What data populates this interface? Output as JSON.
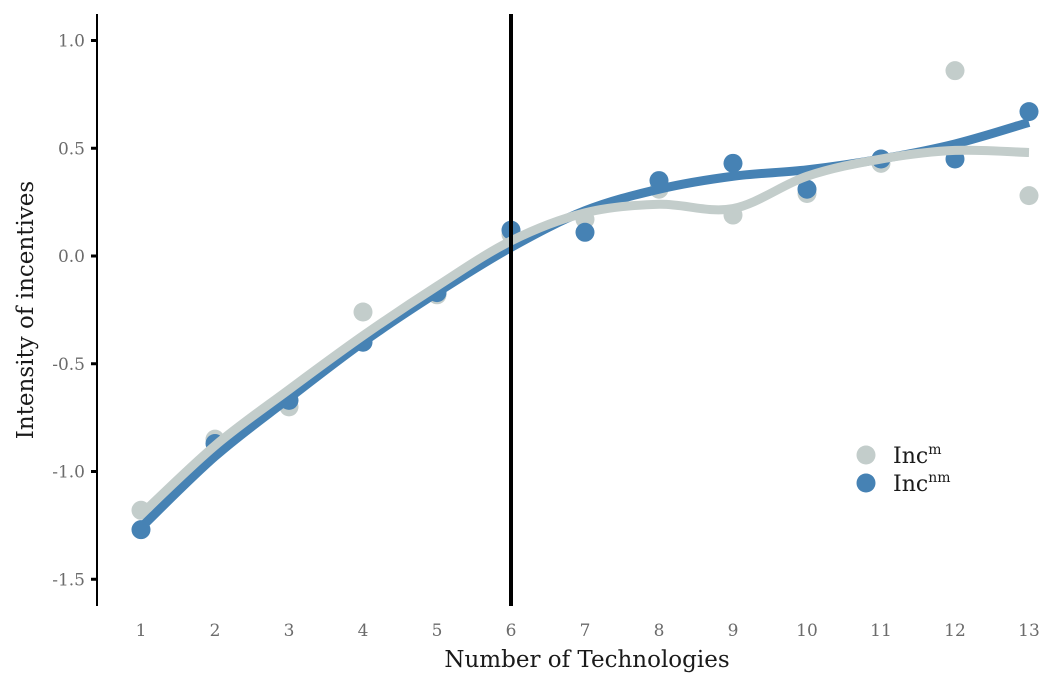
{
  "chart_data": {
    "type": "scatter",
    "title": "",
    "xlabel": "Number of Technologies",
    "ylabel": "Intensity of incentives",
    "x": [
      1,
      2,
      3,
      4,
      5,
      6,
      7,
      8,
      9,
      10,
      11,
      12,
      13
    ],
    "xticks": [
      "1",
      "2",
      "3",
      "4",
      "5",
      "6",
      "7",
      "8",
      "9",
      "10",
      "11",
      "12",
      "13"
    ],
    "yticks": [
      "1.0",
      "0.5",
      "0.0",
      "-0.5",
      "-1.0",
      "-1.5"
    ],
    "ytick_values": [
      1.0,
      0.5,
      0.0,
      -0.5,
      -1.0,
      -1.5
    ],
    "xlim": [
      0.4,
      13.3
    ],
    "ylim": [
      -1.62,
      1.12
    ],
    "grid": false,
    "vline": {
      "x": 6,
      "color": "#000000"
    },
    "legend_position": "inside-bottom-right",
    "series": [
      {
        "name": "Inc^m",
        "label_base": "Inc",
        "label_sup": "m",
        "color": "#c3cdcb",
        "values": [
          -1.18,
          -0.85,
          -0.7,
          -0.26,
          -0.18,
          0.1,
          0.17,
          0.31,
          0.19,
          0.29,
          0.43,
          0.86,
          0.28
        ],
        "smooth": [
          -1.2,
          -0.88,
          -0.62,
          -0.37,
          -0.14,
          0.07,
          0.2,
          0.24,
          0.22,
          0.37,
          0.45,
          0.49,
          0.48
        ]
      },
      {
        "name": "Inc^nm",
        "label_base": "Inc",
        "label_sup": "nm",
        "color": "#4682b4",
        "values": [
          -1.27,
          -0.87,
          -0.67,
          -0.4,
          -0.17,
          0.12,
          0.11,
          0.35,
          0.43,
          0.31,
          0.45,
          0.45,
          0.67
        ],
        "smooth": [
          -1.26,
          -0.93,
          -0.66,
          -0.4,
          -0.17,
          0.04,
          0.21,
          0.31,
          0.37,
          0.4,
          0.45,
          0.52,
          0.62
        ]
      }
    ]
  }
}
